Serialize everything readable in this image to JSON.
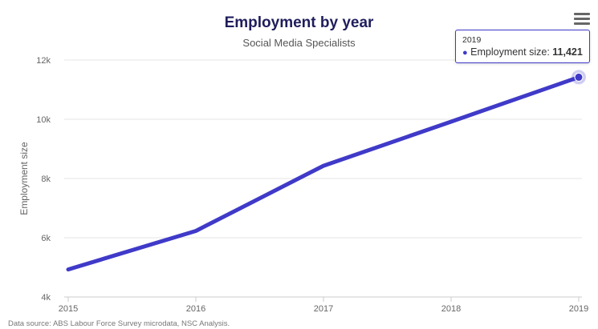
{
  "chart_data": {
    "type": "line",
    "title": "Employment by year",
    "subtitle": "Social Media Specialists",
    "xlabel": "",
    "ylabel": "Employment size",
    "x": [
      "2015",
      "2016",
      "2017",
      "2018",
      "2019"
    ],
    "series": [
      {
        "name": "Employment size",
        "values": [
          4930,
          6230,
          8430,
          9920,
          11421
        ]
      }
    ],
    "ylim": [
      4000,
      12000
    ],
    "yticks": [
      4000,
      6000,
      8000,
      10000,
      12000
    ],
    "ytick_labels": [
      "4k",
      "6k",
      "8k",
      "10k",
      "12k"
    ],
    "grid": true,
    "line_color": "#3f3ac8",
    "legend": "none"
  },
  "tooltip": {
    "header": "2019",
    "series_label": "Employment size: ",
    "value": "11,421",
    "bullet": "●"
  },
  "source": "Data source: ABS Labour Force Survey microdata, NSC Analysis.",
  "menu": {
    "icon": "hamburger-menu-icon"
  }
}
